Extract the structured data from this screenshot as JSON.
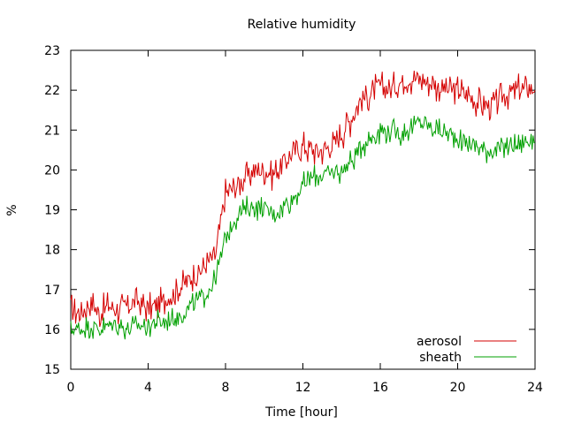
{
  "chart_data": {
    "type": "line",
    "title": "Relative humidity",
    "xlabel": "Time [hour]",
    "ylabel": "%",
    "xlim": [
      0,
      24
    ],
    "ylim": [
      15,
      23
    ],
    "xticks": [
      0,
      4,
      8,
      12,
      16,
      20,
      24
    ],
    "yticks": [
      15,
      16,
      17,
      18,
      19,
      20,
      21,
      22,
      23
    ],
    "grid": false,
    "legend_position": "bottom-right",
    "series": [
      {
        "name": "aerosol",
        "color": "#d40000",
        "x": [
          0,
          0.5,
          1,
          1.5,
          2,
          2.5,
          3,
          3.5,
          4,
          4.5,
          5,
          5.5,
          6,
          6.5,
          7,
          7.5,
          8,
          8.5,
          9,
          9.5,
          10,
          10.5,
          11,
          11.5,
          12,
          12.5,
          13,
          13.5,
          14,
          14.5,
          15,
          15.5,
          16,
          16.5,
          17,
          17.5,
          18,
          18.5,
          19,
          19.5,
          20,
          20.5,
          21,
          21.5,
          22,
          22.5,
          23,
          23.5,
          24
        ],
        "values": [
          16.5,
          16.4,
          16.7,
          16.4,
          16.6,
          16.5,
          16.6,
          16.7,
          16.5,
          16.6,
          16.8,
          17.0,
          17.2,
          17.4,
          17.6,
          17.9,
          19.4,
          19.6,
          19.8,
          20.0,
          20.0,
          19.9,
          20.2,
          20.4,
          20.6,
          20.5,
          20.5,
          20.6,
          20.9,
          21.3,
          21.8,
          21.9,
          22.1,
          22.0,
          22.2,
          22.3,
          22.3,
          22.2,
          22.1,
          22.0,
          22.0,
          21.9,
          21.7,
          21.6,
          21.7,
          21.9,
          22.0,
          22.0,
          22.1
        ]
      },
      {
        "name": "sheath",
        "color": "#00a000",
        "x": [
          0,
          0.5,
          1,
          1.5,
          2,
          2.5,
          3,
          3.5,
          4,
          4.5,
          5,
          5.5,
          6,
          6.5,
          7,
          7.5,
          8,
          8.5,
          9,
          9.5,
          10,
          10.5,
          11,
          11.5,
          12,
          12.5,
          13,
          13.5,
          14,
          14.5,
          15,
          15.5,
          16,
          16.5,
          17,
          17.5,
          18,
          18.5,
          19,
          19.5,
          20,
          20.5,
          21,
          21.5,
          22,
          22.5,
          23,
          23.5,
          24
        ],
        "values": [
          16.0,
          16.0,
          16.1,
          16.0,
          16.1,
          16.1,
          16.0,
          16.1,
          16.1,
          16.2,
          16.2,
          16.3,
          16.5,
          16.7,
          16.9,
          17.3,
          18.3,
          18.8,
          19.0,
          19.1,
          19.0,
          18.9,
          19.1,
          19.3,
          19.6,
          19.8,
          19.9,
          19.9,
          20.0,
          20.2,
          20.6,
          20.8,
          21.0,
          21.0,
          20.9,
          21.0,
          21.2,
          21.1,
          21.0,
          20.9,
          20.8,
          20.7,
          20.6,
          20.5,
          20.5,
          20.6,
          20.6,
          20.7,
          20.8
        ]
      }
    ]
  }
}
